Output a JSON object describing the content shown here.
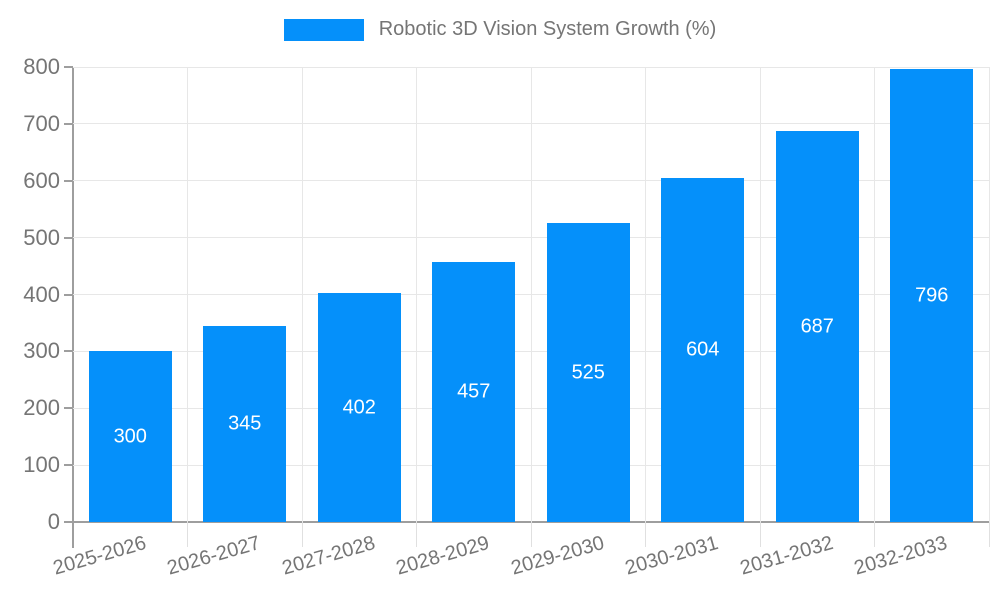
{
  "chart_data": {
    "type": "bar",
    "title": "Robotic 3D Vision System Growth (%)",
    "legend": {
      "position": "top-center",
      "entries": [
        "Robotic 3D Vision System Growth (%)"
      ]
    },
    "categories": [
      "2025-2026",
      "2026-2027",
      "2027-2028",
      "2028-2029",
      "2029-2030",
      "2030-2031",
      "2031-2032",
      "2032-2033"
    ],
    "values": [
      300,
      345,
      402,
      457,
      525,
      604,
      687,
      796
    ],
    "data_labels": [
      "300",
      "345",
      "402",
      "457",
      "525",
      "604",
      "687",
      "796"
    ],
    "xlabel": "",
    "ylabel": "",
    "ylim": [
      0,
      800
    ],
    "yticks": [
      0,
      100,
      200,
      300,
      400,
      500,
      600,
      700,
      800
    ],
    "grid": "horizontal and vertical light gridlines",
    "colors": {
      "bar": "#0590FA",
      "bar_value_text": "#ffffff",
      "axis_text": "#757575",
      "axis_line": "#9e9e9e",
      "gridline": "#e7e7e7"
    }
  }
}
